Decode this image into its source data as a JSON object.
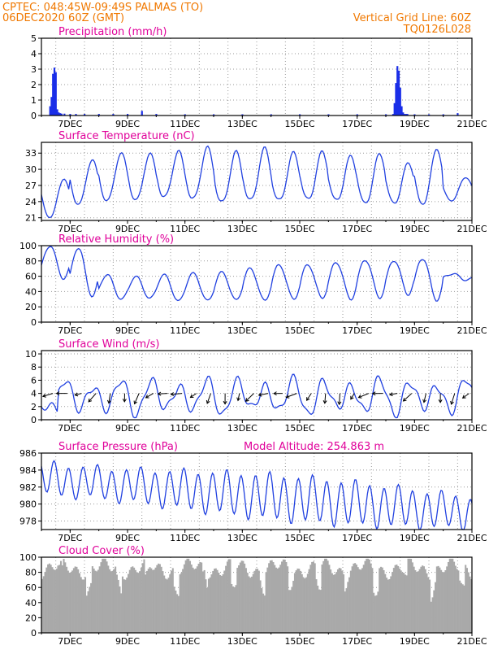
{
  "header": {
    "line1": "CPTEC:   048:45W-09:49S   PALMAS (TO)",
    "line2": "06DEC2020 60Z (GMT)",
    "right1": "Vertical Grid Line: 60Z",
    "right2": "TQ0126L028"
  },
  "colors": {
    "header": "#f07800",
    "panel_title": "#e0009a",
    "line": "#2040e0",
    "bar": "#1a2ee8",
    "cloud": "#a9a9a9",
    "grid": "#9a9a9a",
    "arrow": "#000000"
  },
  "x_ticks": [
    "7DEC",
    "9DEC",
    "11DEC",
    "13DEC",
    "15DEC",
    "17DEC",
    "19DEC",
    "21DEC"
  ],
  "chart_data": [
    {
      "type": "bar",
      "title": "Precipitation (mm/h)",
      "yticks": [
        0,
        1,
        2,
        3,
        4,
        5
      ],
      "ylim": [
        0,
        5
      ],
      "x_unit": "days after 06DEC2020 00Z",
      "x": [
        0.3,
        0.35,
        0.4,
        0.45,
        0.5,
        0.55,
        0.6,
        0.65,
        0.7,
        0.8,
        1.0,
        1.2,
        1.5,
        2.0,
        2.5,
        3.0,
        3.5,
        4.0,
        5.0,
        6.0,
        7.0,
        8.0,
        9.0,
        10.0,
        11.0,
        12.0,
        12.25,
        12.3,
        12.35,
        12.4,
        12.45,
        12.5,
        12.55,
        12.6,
        12.65,
        12.7,
        12.75,
        13.0,
        13.5,
        14.0,
        14.5
      ],
      "values": [
        0.6,
        1.2,
        2.7,
        3.1,
        2.8,
        0.4,
        0.2,
        0.15,
        0.12,
        0.12,
        0.1,
        0.1,
        0.1,
        0.1,
        0.1,
        0.1,
        0.3,
        0.1,
        0.08,
        0.08,
        0.08,
        0.08,
        0.08,
        0.08,
        0.08,
        0.08,
        0.1,
        0.8,
        2.1,
        3.2,
        2.9,
        1.8,
        0.6,
        0.2,
        0.1,
        0.1,
        0.1,
        0.08,
        0.08,
        0.08,
        0.15
      ]
    },
    {
      "type": "line",
      "title": "Surface Temperature (nC)",
      "yticks": [
        21,
        24,
        27,
        30,
        33
      ],
      "ylim": [
        20.5,
        35
      ],
      "daily": {
        "min": 23.2,
        "max_by_day": [
          28.5,
          32,
          33,
          33.2,
          33.5,
          34,
          33.5,
          34,
          33,
          33.5,
          32.5,
          32.8,
          31.5,
          33.8,
          28.5
        ],
        "min_by_day": [
          21.3,
          23.5,
          24.5,
          24.5,
          24.8,
          24.8,
          24,
          24.2,
          24.5,
          24.5,
          24.2,
          24,
          23.8,
          23.5,
          24.5
        ]
      }
    },
    {
      "type": "line",
      "title": "Relative Humidity (%)",
      "yticks": [
        0,
        20,
        40,
        60,
        80,
        100
      ],
      "ylim": [
        0,
        100
      ],
      "daily": {
        "max_by_day": [
          100,
          97,
          60,
          60,
          62,
          62,
          66,
          70,
          73,
          76,
          78,
          80,
          82,
          83,
          62
        ],
        "min_by_day": [
          55,
          34,
          30,
          29,
          28,
          28,
          27,
          29,
          30,
          30,
          31,
          32,
          35,
          30,
          55
        ]
      }
    },
    {
      "type": "line",
      "title": "Surface Wind (m/s)",
      "yticks": [
        0,
        2,
        4,
        6,
        8,
        10
      ],
      "ylim": [
        0,
        10.5
      ],
      "series_note": "speed with wind-direction arrows at y=4"
    },
    {
      "type": "line",
      "title": "Surface Pressure (hPa)",
      "subtitle": "Model Altitude: 254.863 m",
      "yticks": [
        978,
        980,
        982,
        984,
        986
      ],
      "ylim": [
        977,
        986
      ]
    },
    {
      "type": "area",
      "title": "Cloud Cover (%)",
      "yticks": [
        0,
        20,
        40,
        60,
        80,
        100
      ],
      "ylim": [
        0,
        100
      ]
    }
  ]
}
